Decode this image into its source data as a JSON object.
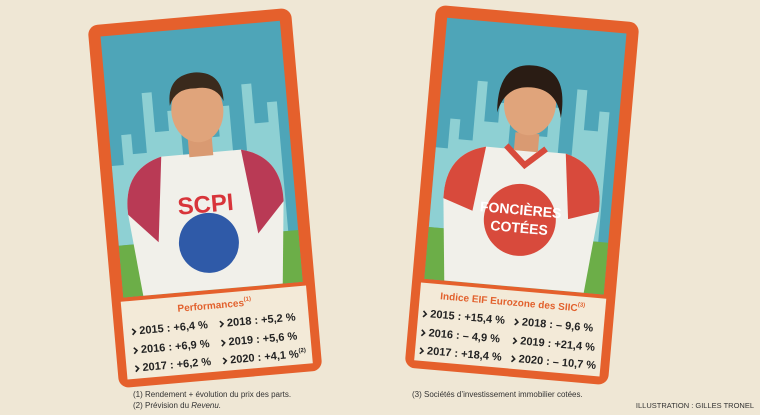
{
  "cards": [
    {
      "shirt_text": [
        "SCPI"
      ],
      "panel": {
        "title": "Performances",
        "title_note": "(1)",
        "stats": [
          [
            {
              "text": "2015 : +6,4 %"
            },
            {
              "text": "2018 : +5,2 %"
            }
          ],
          [
            {
              "text": "2016 : +6,9 %"
            },
            {
              "text": "2019 : +5,6 %"
            }
          ],
          [
            {
              "text": "2017 : +6,2 %"
            },
            {
              "text": "2020 : +4,1 %",
              "note": "(2)"
            }
          ]
        ]
      }
    },
    {
      "shirt_text": [
        "FONCIÈRES",
        "COTÉES"
      ],
      "panel": {
        "title": "Indice EIF Eurozone des SIIC",
        "title_note": "(3)",
        "stats": [
          [
            {
              "text": "2015 : +15,4 %"
            },
            {
              "text": "2018 : – 9,6 %"
            }
          ],
          [
            {
              "text": "2016 : – 4,9 %"
            },
            {
              "text": "2019 : +21,4 %"
            }
          ],
          [
            {
              "text": "2017 : +18,4 %"
            },
            {
              "text": "2020 : – 10,7 %"
            }
          ]
        ]
      }
    }
  ],
  "footnotes": [
    {
      "parts": [
        "(1) Rendement + évolution du prix des parts."
      ]
    },
    {
      "parts": [
        "(2) Prévision du ",
        "Revenu."
      ]
    },
    {
      "parts": [
        "(3) Sociétés d’investissement immobilier cotées."
      ]
    }
  ],
  "credit": "ILLUSTRATION : GILLES TRONEL"
}
